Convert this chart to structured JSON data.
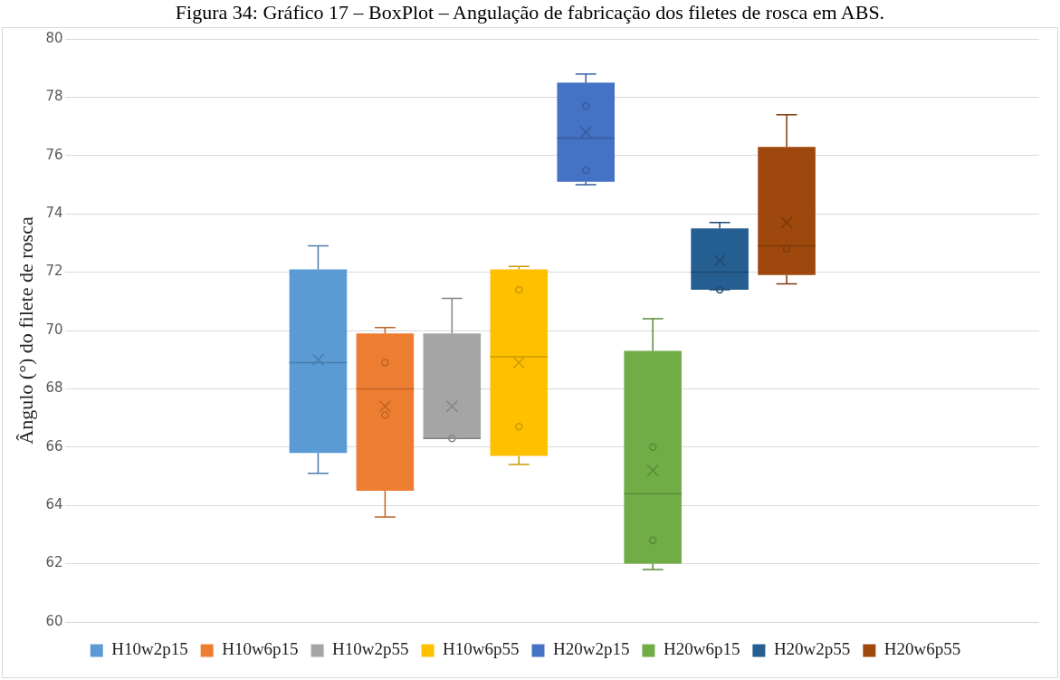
{
  "chart_data": {
    "type": "box",
    "title": "Figura 34: Gráfico 17 – BoxPlot – Angulação de fabricação dos filetes de rosca em ABS.",
    "ylabel": "Ângulo (°) do filete de rosca",
    "categories": [
      null
    ],
    "ylim": [
      60,
      80
    ],
    "yticks": [
      60,
      62,
      64,
      66,
      68,
      70,
      72,
      74,
      76,
      78,
      80
    ],
    "grid": "y",
    "legend": "bottom",
    "tick_labels": "y",
    "series": [
      {
        "name": "H10w2p15",
        "color": "#5b9bd5",
        "boxes": [
          {
            "low": 65.1,
            "q1": 65.8,
            "median": 68.9,
            "q3": 72.1,
            "high": 72.9,
            "mean": 69.0
          }
        ]
      },
      {
        "name": "H10w6p15",
        "color": "#ed7d31",
        "boxes": [
          {
            "low": 63.6,
            "q1": 64.5,
            "median": 68.0,
            "q3": 69.9,
            "high": 70.1,
            "mean": 67.4,
            "outliers": [
              68.9,
              67.1
            ]
          }
        ]
      },
      {
        "name": "H10w2p55",
        "color": "#a5a5a5",
        "boxes": [
          {
            "low": 66.3,
            "q1": 66.3,
            "median": 66.3,
            "q3": 69.9,
            "high": 71.1,
            "mean": 67.4,
            "outliers": [
              66.3
            ]
          }
        ]
      },
      {
        "name": "H10w6p55",
        "color": "#ffc000",
        "boxes": [
          {
            "low": 65.4,
            "q1": 65.7,
            "median": 69.1,
            "q3": 72.1,
            "high": 72.2,
            "mean": 68.9,
            "outliers": [
              71.4,
              66.7
            ]
          }
        ]
      },
      {
        "name": "H20w2p15",
        "color": "#4472c4",
        "boxes": [
          {
            "low": 75.0,
            "q1": 75.1,
            "median": 76.6,
            "q3": 78.5,
            "high": 78.8,
            "mean": 76.8,
            "outliers": [
              77.7,
              75.5
            ]
          }
        ]
      },
      {
        "name": "H20w6p15",
        "color": "#70ad47",
        "boxes": [
          {
            "low": 61.8,
            "q1": 62.0,
            "median": 64.4,
            "q3": 69.3,
            "high": 70.4,
            "mean": 65.2,
            "outliers": [
              66.0,
              62.8
            ]
          }
        ]
      },
      {
        "name": "H20w2p55",
        "color": "#255e91",
        "boxes": [
          {
            "low": 71.4,
            "q1": 71.4,
            "median": 72.0,
            "q3": 73.5,
            "high": 73.7,
            "mean": 72.4,
            "outliers": [
              71.4
            ]
          }
        ]
      },
      {
        "name": "H20w6p55",
        "color": "#9e480e",
        "boxes": [
          {
            "low": 71.6,
            "q1": 71.9,
            "median": 72.9,
            "q3": 76.3,
            "high": 77.4,
            "mean": 73.7,
            "outliers": [
              72.8
            ]
          }
        ]
      }
    ]
  }
}
